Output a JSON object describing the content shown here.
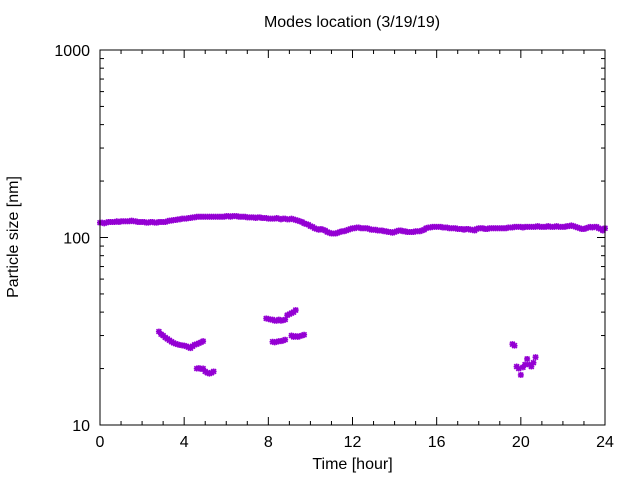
{
  "chart_data": {
    "type": "scatter",
    "title": "Modes location (3/19/19)",
    "xlabel": "Time [hour]",
    "ylabel": "Particle size [nm]",
    "xlim": [
      0,
      24
    ],
    "ylim": [
      10,
      1000
    ],
    "yscale": "log",
    "x_ticks": [
      0,
      4,
      8,
      12,
      16,
      20,
      24
    ],
    "y_ticks": [
      10,
      100,
      1000
    ],
    "grid": false,
    "marker_color": "#9400d3",
    "series": [
      {
        "points": [
          [
            0.0,
            120
          ],
          [
            0.1,
            120
          ],
          [
            0.2,
            119
          ],
          [
            0.3,
            120
          ],
          [
            0.4,
            121
          ],
          [
            0.5,
            121
          ],
          [
            0.6,
            121
          ],
          [
            0.7,
            121
          ],
          [
            0.8,
            122
          ],
          [
            0.9,
            121
          ],
          [
            1.0,
            122
          ],
          [
            1.1,
            122
          ],
          [
            1.2,
            122
          ],
          [
            1.3,
            122
          ],
          [
            1.4,
            122
          ],
          [
            1.5,
            123
          ],
          [
            1.6,
            122
          ],
          [
            1.7,
            122
          ],
          [
            1.8,
            121
          ],
          [
            1.9,
            121
          ],
          [
            2.0,
            121
          ],
          [
            2.1,
            121
          ],
          [
            2.2,
            120
          ],
          [
            2.3,
            120
          ],
          [
            2.4,
            121
          ],
          [
            2.5,
            121
          ],
          [
            2.6,
            120
          ],
          [
            2.7,
            120
          ],
          [
            2.8,
            121
          ],
          [
            2.9,
            121
          ],
          [
            3.0,
            121
          ],
          [
            3.1,
            121
          ],
          [
            3.2,
            122
          ],
          [
            3.3,
            123
          ],
          [
            3.4,
            123
          ],
          [
            3.5,
            124
          ],
          [
            3.6,
            124
          ],
          [
            3.7,
            125
          ],
          [
            3.8,
            125
          ],
          [
            3.9,
            126
          ],
          [
            4.0,
            126
          ],
          [
            4.1,
            126
          ],
          [
            4.2,
            127
          ],
          [
            4.3,
            127
          ],
          [
            4.4,
            128
          ],
          [
            4.5,
            128
          ],
          [
            4.6,
            129
          ],
          [
            4.7,
            129
          ],
          [
            4.8,
            129
          ],
          [
            4.9,
            129
          ],
          [
            5.0,
            129
          ],
          [
            5.1,
            129
          ],
          [
            5.2,
            129
          ],
          [
            5.3,
            129
          ],
          [
            5.4,
            129
          ],
          [
            5.5,
            129
          ],
          [
            5.6,
            129
          ],
          [
            5.7,
            129
          ],
          [
            5.8,
            129
          ],
          [
            5.9,
            129
          ],
          [
            6.0,
            130
          ],
          [
            6.1,
            130
          ],
          [
            6.2,
            129
          ],
          [
            6.3,
            130
          ],
          [
            6.4,
            130
          ],
          [
            6.5,
            130
          ],
          [
            6.6,
            129
          ],
          [
            6.7,
            129
          ],
          [
            6.8,
            129
          ],
          [
            6.9,
            129
          ],
          [
            7.0,
            128
          ],
          [
            7.1,
            128
          ],
          [
            7.2,
            128
          ],
          [
            7.3,
            128
          ],
          [
            7.4,
            127
          ],
          [
            7.5,
            128
          ],
          [
            7.6,
            128
          ],
          [
            7.7,
            127
          ],
          [
            7.8,
            127
          ],
          [
            7.9,
            127
          ],
          [
            8.0,
            126
          ],
          [
            8.1,
            126
          ],
          [
            8.2,
            126
          ],
          [
            8.3,
            126
          ],
          [
            8.4,
            127
          ],
          [
            8.5,
            126
          ],
          [
            8.6,
            125
          ],
          [
            8.7,
            126
          ],
          [
            8.8,
            126
          ],
          [
            8.9,
            125
          ],
          [
            9.0,
            125
          ],
          [
            9.1,
            126
          ],
          [
            9.2,
            125
          ],
          [
            9.3,
            124
          ],
          [
            9.4,
            123
          ],
          [
            9.5,
            122
          ],
          [
            9.6,
            121
          ],
          [
            9.7,
            119
          ],
          [
            9.8,
            118
          ],
          [
            9.9,
            117
          ],
          [
            10.0,
            115
          ],
          [
            10.1,
            114
          ],
          [
            10.2,
            112
          ],
          [
            10.3,
            111
          ],
          [
            10.4,
            110
          ],
          [
            10.5,
            111
          ],
          [
            10.6,
            110
          ],
          [
            10.7,
            109
          ],
          [
            10.8,
            107
          ],
          [
            10.9,
            106
          ],
          [
            11.0,
            105
          ],
          [
            11.1,
            105
          ],
          [
            11.2,
            105
          ],
          [
            11.3,
            106
          ],
          [
            11.4,
            107
          ],
          [
            11.5,
            108
          ],
          [
            11.6,
            108
          ],
          [
            11.7,
            109
          ],
          [
            11.8,
            110
          ],
          [
            11.9,
            111
          ],
          [
            12.0,
            112
          ],
          [
            12.1,
            112
          ],
          [
            12.2,
            113
          ],
          [
            12.3,
            113
          ],
          [
            12.4,
            112
          ],
          [
            12.5,
            112
          ],
          [
            12.6,
            112
          ],
          [
            12.7,
            112
          ],
          [
            12.8,
            111
          ],
          [
            12.9,
            110
          ],
          [
            13.0,
            110
          ],
          [
            13.1,
            110
          ],
          [
            13.2,
            109
          ],
          [
            13.3,
            109
          ],
          [
            13.4,
            109
          ],
          [
            13.5,
            108
          ],
          [
            13.6,
            108
          ],
          [
            13.7,
            107
          ],
          [
            13.8,
            107
          ],
          [
            13.9,
            106
          ],
          [
            14.0,
            107
          ],
          [
            14.1,
            108
          ],
          [
            14.2,
            109
          ],
          [
            14.3,
            109
          ],
          [
            14.4,
            108
          ],
          [
            14.5,
            108
          ],
          [
            14.6,
            107
          ],
          [
            14.7,
            107
          ],
          [
            14.8,
            107
          ],
          [
            14.9,
            107
          ],
          [
            15.0,
            108
          ],
          [
            15.1,
            108
          ],
          [
            15.2,
            108
          ],
          [
            15.3,
            109
          ],
          [
            15.4,
            110
          ],
          [
            15.5,
            112
          ],
          [
            15.6,
            113
          ],
          [
            15.7,
            113
          ],
          [
            15.8,
            114
          ],
          [
            15.9,
            114
          ],
          [
            16.0,
            114
          ],
          [
            16.1,
            114
          ],
          [
            16.2,
            114
          ],
          [
            16.3,
            113
          ],
          [
            16.4,
            113
          ],
          [
            16.5,
            113
          ],
          [
            16.6,
            112
          ],
          [
            16.7,
            112
          ],
          [
            16.8,
            112
          ],
          [
            16.9,
            112
          ],
          [
            17.0,
            111
          ],
          [
            17.1,
            111
          ],
          [
            17.2,
            111
          ],
          [
            17.3,
            110
          ],
          [
            17.4,
            111
          ],
          [
            17.5,
            111
          ],
          [
            17.6,
            110
          ],
          [
            17.7,
            110
          ],
          [
            17.8,
            109
          ],
          [
            17.9,
            111
          ],
          [
            18.0,
            112
          ],
          [
            18.1,
            112
          ],
          [
            18.2,
            112
          ],
          [
            18.3,
            111
          ],
          [
            18.4,
            111
          ],
          [
            18.5,
            112
          ],
          [
            18.6,
            112
          ],
          [
            18.7,
            112
          ],
          [
            18.8,
            112
          ],
          [
            18.9,
            112
          ],
          [
            19.0,
            112
          ],
          [
            19.1,
            112
          ],
          [
            19.2,
            112
          ],
          [
            19.3,
            112
          ],
          [
            19.4,
            113
          ],
          [
            19.5,
            113
          ],
          [
            19.6,
            113
          ],
          [
            19.7,
            114
          ],
          [
            19.8,
            114
          ],
          [
            19.9,
            114
          ],
          [
            20.0,
            114
          ],
          [
            20.1,
            113
          ],
          [
            20.2,
            114
          ],
          [
            20.3,
            114
          ],
          [
            20.4,
            114
          ],
          [
            20.5,
            114
          ],
          [
            20.6,
            114
          ],
          [
            20.7,
            114
          ],
          [
            20.8,
            115
          ],
          [
            20.9,
            114
          ],
          [
            21.0,
            114
          ],
          [
            21.1,
            114
          ],
          [
            21.2,
            114
          ],
          [
            21.3,
            115
          ],
          [
            21.4,
            114
          ],
          [
            21.5,
            114
          ],
          [
            21.6,
            114
          ],
          [
            21.7,
            115
          ],
          [
            21.8,
            114
          ],
          [
            21.9,
            114
          ],
          [
            22.0,
            114
          ],
          [
            22.1,
            114
          ],
          [
            22.2,
            115
          ],
          [
            22.3,
            115
          ],
          [
            22.4,
            116
          ],
          [
            22.5,
            115
          ],
          [
            22.6,
            114
          ],
          [
            22.7,
            113
          ],
          [
            22.8,
            112
          ],
          [
            22.9,
            111
          ],
          [
            23.0,
            111
          ],
          [
            23.1,
            112
          ],
          [
            23.2,
            113
          ],
          [
            23.3,
            114
          ],
          [
            23.4,
            113
          ],
          [
            23.5,
            114
          ],
          [
            23.6,
            114
          ],
          [
            23.7,
            112
          ],
          [
            23.8,
            111
          ],
          [
            23.9,
            109
          ],
          [
            24.0,
            112
          ],
          [
            2.8,
            31.5
          ],
          [
            2.9,
            30.5
          ],
          [
            3.0,
            30.0
          ],
          [
            3.1,
            29.3
          ],
          [
            3.2,
            28.8
          ],
          [
            3.3,
            28.3
          ],
          [
            3.4,
            27.8
          ],
          [
            3.5,
            27.4
          ],
          [
            3.6,
            27.1
          ],
          [
            3.7,
            26.9
          ],
          [
            3.8,
            26.7
          ],
          [
            3.9,
            26.6
          ],
          [
            4.0,
            26.5
          ],
          [
            4.1,
            26.3
          ],
          [
            4.2,
            26.0
          ],
          [
            4.3,
            25.7
          ],
          [
            4.4,
            26.3
          ],
          [
            4.5,
            26.8
          ],
          [
            4.6,
            27.0
          ],
          [
            4.7,
            27.3
          ],
          [
            4.8,
            27.6
          ],
          [
            4.9,
            28.0
          ],
          [
            4.6,
            20.0
          ],
          [
            4.7,
            20.1
          ],
          [
            4.8,
            19.9
          ],
          [
            4.9,
            20.0
          ],
          [
            5.0,
            19.3
          ],
          [
            5.1,
            19.0
          ],
          [
            5.2,
            18.8
          ],
          [
            5.3,
            19.0
          ],
          [
            5.4,
            19.3
          ],
          [
            7.9,
            37.0
          ],
          [
            8.0,
            36.8
          ],
          [
            8.1,
            36.5
          ],
          [
            8.2,
            36.5
          ],
          [
            8.3,
            36.0
          ],
          [
            8.4,
            36.0
          ],
          [
            8.5,
            36.5
          ],
          [
            8.6,
            36.0
          ],
          [
            8.7,
            36.2
          ],
          [
            8.8,
            36.5
          ],
          [
            8.9,
            38.5
          ],
          [
            9.0,
            39.0
          ],
          [
            9.1,
            39.5
          ],
          [
            9.2,
            40.0
          ],
          [
            9.3,
            41.0
          ],
          [
            8.2,
            27.8
          ],
          [
            8.3,
            27.6
          ],
          [
            8.4,
            27.8
          ],
          [
            8.5,
            28.0
          ],
          [
            8.6,
            28.0
          ],
          [
            8.7,
            28.2
          ],
          [
            8.8,
            28.5
          ],
          [
            9.1,
            30.0
          ],
          [
            9.2,
            29.5
          ],
          [
            9.3,
            29.8
          ],
          [
            9.4,
            29.5
          ],
          [
            9.5,
            29.8
          ],
          [
            9.6,
            30.0
          ],
          [
            9.7,
            30.3
          ],
          [
            19.6,
            27.0
          ],
          [
            19.7,
            26.5
          ],
          [
            19.8,
            20.5
          ],
          [
            19.9,
            20.0
          ],
          [
            20.0,
            18.5
          ],
          [
            20.1,
            20.3
          ],
          [
            20.2,
            21.0
          ],
          [
            20.3,
            22.5
          ],
          [
            20.4,
            21.0
          ],
          [
            20.5,
            20.5
          ],
          [
            20.6,
            21.5
          ],
          [
            20.7,
            23.0
          ]
        ]
      }
    ]
  }
}
